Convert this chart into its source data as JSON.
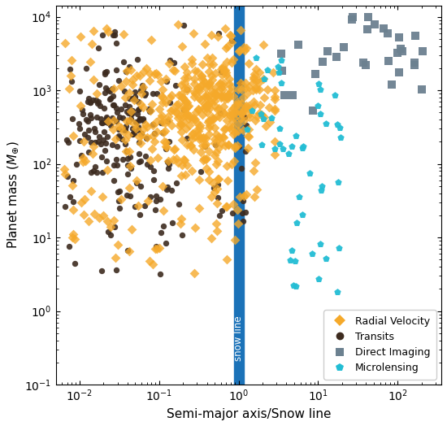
{
  "xlabel": "Semi-major axis/Snow line",
  "ylabel": "Planet mass ($M_{\\oplus}$)",
  "xlim_log": [
    -2.3,
    2.55
  ],
  "ylim_log": [
    -1.0,
    4.15
  ],
  "snow_line_color": "#1b72b8",
  "snow_line_label": "snow line",
  "rv_color": "#f5a92a",
  "transit_color": "#3d2b1f",
  "di_color": "#6c8190",
  "ml_color": "#22bdd4",
  "rv_marker_size": 36,
  "tr_marker_size": 28,
  "di_marker_size": 44,
  "ml_marker_size": 40,
  "legend_loc": "lower right",
  "background_color": "#ffffff",
  "seed": 7,
  "rv_n": 500,
  "transit_n": 250,
  "di_n": 32,
  "ml_n": 50
}
